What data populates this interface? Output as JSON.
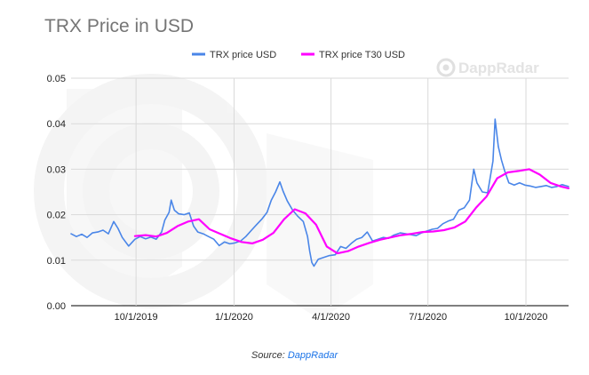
{
  "chart_data": {
    "type": "line",
    "title": "TRX Price in USD",
    "x_ticks": [
      "10/1/2019",
      "1/1/2020",
      "4/1/2020",
      "7/1/2020",
      "10/1/2020"
    ],
    "x_range": [
      "2019-08-01",
      "2020-11-10"
    ],
    "ylim": [
      0,
      0.05
    ],
    "y_ticks": [
      "0.00",
      "0.01",
      "0.02",
      "0.03",
      "0.04",
      "0.05"
    ],
    "grid": true,
    "legend_position": "top",
    "series": [
      {
        "name": "TRX price USD",
        "color": "#4a86e8",
        "points": [
          [
            "2019-08-01",
            0.0158
          ],
          [
            "2019-08-06",
            0.0152
          ],
          [
            "2019-08-11",
            0.0157
          ],
          [
            "2019-08-16",
            0.015
          ],
          [
            "2019-08-21",
            0.016
          ],
          [
            "2019-08-26",
            0.0162
          ],
          [
            "2019-08-31",
            0.0166
          ],
          [
            "2019-09-05",
            0.0158
          ],
          [
            "2019-09-10",
            0.0185
          ],
          [
            "2019-09-14",
            0.017
          ],
          [
            "2019-09-18",
            0.015
          ],
          [
            "2019-09-24",
            0.0131
          ],
          [
            "2019-09-30",
            0.0146
          ],
          [
            "2019-10-05",
            0.0152
          ],
          [
            "2019-10-10",
            0.0147
          ],
          [
            "2019-10-15",
            0.0151
          ],
          [
            "2019-10-20",
            0.0146
          ],
          [
            "2019-10-25",
            0.0162
          ],
          [
            "2019-10-28",
            0.0188
          ],
          [
            "2019-11-01",
            0.0205
          ],
          [
            "2019-11-03",
            0.0232
          ],
          [
            "2019-11-06",
            0.021
          ],
          [
            "2019-11-10",
            0.0202
          ],
          [
            "2019-11-15",
            0.02
          ],
          [
            "2019-11-20",
            0.0204
          ],
          [
            "2019-11-24",
            0.0175
          ],
          [
            "2019-11-28",
            0.0162
          ],
          [
            "2019-12-03",
            0.0158
          ],
          [
            "2019-12-08",
            0.0152
          ],
          [
            "2019-12-13",
            0.0146
          ],
          [
            "2019-12-18",
            0.0132
          ],
          [
            "2019-12-23",
            0.014
          ],
          [
            "2019-12-28",
            0.0136
          ],
          [
            "2020-01-02",
            0.0138
          ],
          [
            "2020-01-07",
            0.0142
          ],
          [
            "2020-01-12",
            0.0152
          ],
          [
            "2020-01-17",
            0.0165
          ],
          [
            "2020-01-22",
            0.0178
          ],
          [
            "2020-01-27",
            0.019
          ],
          [
            "2020-02-01",
            0.0205
          ],
          [
            "2020-02-05",
            0.0232
          ],
          [
            "2020-02-09",
            0.025
          ],
          [
            "2020-02-13",
            0.0272
          ],
          [
            "2020-02-16",
            0.0252
          ],
          [
            "2020-02-20",
            0.023
          ],
          [
            "2020-02-25",
            0.021
          ],
          [
            "2020-03-01",
            0.0196
          ],
          [
            "2020-03-06",
            0.0185
          ],
          [
            "2020-03-10",
            0.0152
          ],
          [
            "2020-03-12",
            0.012
          ],
          [
            "2020-03-14",
            0.0095
          ],
          [
            "2020-03-16",
            0.0087
          ],
          [
            "2020-03-20",
            0.0102
          ],
          [
            "2020-03-25",
            0.0106
          ],
          [
            "2020-03-30",
            0.011
          ],
          [
            "2020-04-05",
            0.0112
          ],
          [
            "2020-04-10",
            0.013
          ],
          [
            "2020-04-15",
            0.0126
          ],
          [
            "2020-04-20",
            0.0137
          ],
          [
            "2020-04-25",
            0.0146
          ],
          [
            "2020-04-30",
            0.015
          ],
          [
            "2020-05-05",
            0.0162
          ],
          [
            "2020-05-10",
            0.0142
          ],
          [
            "2020-05-15",
            0.0146
          ],
          [
            "2020-05-20",
            0.015
          ],
          [
            "2020-05-25",
            0.0148
          ],
          [
            "2020-05-30",
            0.0155
          ],
          [
            "2020-06-05",
            0.016
          ],
          [
            "2020-06-10",
            0.0158
          ],
          [
            "2020-06-15",
            0.0156
          ],
          [
            "2020-06-20",
            0.0154
          ],
          [
            "2020-06-25",
            0.016
          ],
          [
            "2020-06-30",
            0.0164
          ],
          [
            "2020-07-05",
            0.0168
          ],
          [
            "2020-07-10",
            0.017
          ],
          [
            "2020-07-15",
            0.018
          ],
          [
            "2020-07-20",
            0.0186
          ],
          [
            "2020-07-25",
            0.019
          ],
          [
            "2020-07-30",
            0.021
          ],
          [
            "2020-08-04",
            0.0215
          ],
          [
            "2020-08-09",
            0.0232
          ],
          [
            "2020-08-13",
            0.03
          ],
          [
            "2020-08-16",
            0.027
          ],
          [
            "2020-08-21",
            0.025
          ],
          [
            "2020-08-26",
            0.0248
          ],
          [
            "2020-08-31",
            0.0318
          ],
          [
            "2020-09-02",
            0.041
          ],
          [
            "2020-09-05",
            0.035
          ],
          [
            "2020-09-08",
            0.032
          ],
          [
            "2020-09-11",
            0.0296
          ],
          [
            "2020-09-15",
            0.027
          ],
          [
            "2020-09-20",
            0.0265
          ],
          [
            "2020-09-25",
            0.027
          ],
          [
            "2020-09-30",
            0.0265
          ],
          [
            "2020-10-05",
            0.0263
          ],
          [
            "2020-10-10",
            0.026
          ],
          [
            "2020-10-15",
            0.0262
          ],
          [
            "2020-10-20",
            0.0264
          ],
          [
            "2020-10-25",
            0.026
          ],
          [
            "2020-10-30",
            0.0262
          ],
          [
            "2020-11-04",
            0.0266
          ],
          [
            "2020-11-10",
            0.0262
          ]
        ]
      },
      {
        "name": "TRX price T30 USD",
        "color": "#ff00ff",
        "points": [
          [
            "2019-09-30",
            0.0153
          ],
          [
            "2019-10-10",
            0.0155
          ],
          [
            "2019-10-20",
            0.0152
          ],
          [
            "2019-10-30",
            0.016
          ],
          [
            "2019-11-09",
            0.0175
          ],
          [
            "2019-11-19",
            0.0185
          ],
          [
            "2019-11-29",
            0.019
          ],
          [
            "2019-12-09",
            0.0168
          ],
          [
            "2019-12-19",
            0.0158
          ],
          [
            "2019-12-29",
            0.0148
          ],
          [
            "2020-01-08",
            0.014
          ],
          [
            "2020-01-18",
            0.0137
          ],
          [
            "2020-01-28",
            0.0145
          ],
          [
            "2020-02-07",
            0.016
          ],
          [
            "2020-02-17",
            0.019
          ],
          [
            "2020-02-27",
            0.0212
          ],
          [
            "2020-03-08",
            0.0203
          ],
          [
            "2020-03-18",
            0.0178
          ],
          [
            "2020-03-28",
            0.013
          ],
          [
            "2020-04-07",
            0.0115
          ],
          [
            "2020-04-17",
            0.012
          ],
          [
            "2020-04-27",
            0.013
          ],
          [
            "2020-05-07",
            0.0138
          ],
          [
            "2020-05-17",
            0.0145
          ],
          [
            "2020-05-27",
            0.015
          ],
          [
            "2020-06-06",
            0.0155
          ],
          [
            "2020-06-16",
            0.0158
          ],
          [
            "2020-06-26",
            0.0162
          ],
          [
            "2020-07-06",
            0.0163
          ],
          [
            "2020-07-16",
            0.0166
          ],
          [
            "2020-07-26",
            0.0172
          ],
          [
            "2020-08-05",
            0.0185
          ],
          [
            "2020-08-15",
            0.0215
          ],
          [
            "2020-08-25",
            0.024
          ],
          [
            "2020-09-04",
            0.028
          ],
          [
            "2020-09-14",
            0.0293
          ],
          [
            "2020-09-24",
            0.0296
          ],
          [
            "2020-10-04",
            0.03
          ],
          [
            "2020-10-14",
            0.0288
          ],
          [
            "2020-10-24",
            0.027
          ],
          [
            "2020-11-03",
            0.0262
          ],
          [
            "2020-11-10",
            0.0258
          ]
        ]
      }
    ]
  },
  "watermark": {
    "text": "DappRadar"
  },
  "caption": {
    "prefix": "Source: ",
    "link_text": "DappRadar"
  }
}
